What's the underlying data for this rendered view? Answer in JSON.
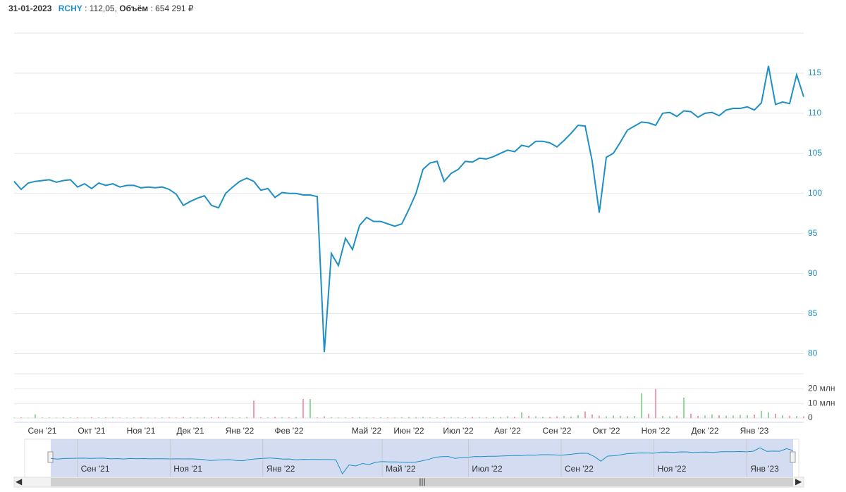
{
  "header": {
    "date": "31-01-2023",
    "ticker": "RCHY",
    "price_text": ": 112,05, ",
    "volume_label": "Объём",
    "volume_text": ": 654 291 ₽"
  },
  "chart_data": {
    "type": "line",
    "categories": [
      null,
      null,
      null,
      null,
      "Сен '21",
      null,
      null,
      null,
      null,
      null,
      null,
      "Окт '21",
      null,
      null,
      null,
      null,
      null,
      null,
      "Ноя '21",
      null,
      null,
      null,
      null,
      null,
      null,
      "Дек '21",
      null,
      null,
      null,
      null,
      null,
      null,
      "Янв '22",
      null,
      null,
      null,
      null,
      null,
      null,
      "Фев '22",
      null,
      null,
      null,
      null,
      null,
      null,
      null,
      null,
      null,
      null,
      "Май '22",
      null,
      null,
      null,
      null,
      null,
      "Июн '22",
      null,
      null,
      null,
      null,
      null,
      null,
      "Июл '22",
      null,
      null,
      null,
      null,
      null,
      null,
      "Авг '22",
      null,
      null,
      null,
      null,
      null,
      null,
      "Сен '22",
      null,
      null,
      null,
      null,
      null,
      null,
      "Окт '22",
      null,
      null,
      null,
      null,
      null,
      null,
      "Ноя '22",
      null,
      null,
      null,
      null,
      null,
      null,
      "Дек '22",
      null,
      null,
      null,
      null,
      null,
      null,
      "Янв '23",
      null,
      null,
      null,
      null,
      null,
      null,
      null
    ],
    "series": [
      {
        "name": "RCHY",
        "color": "#1f8fc4",
        "values": [
          101.5,
          100.5,
          101.3,
          101.5,
          101.6,
          101.7,
          101.4,
          101.6,
          101.7,
          100.8,
          101.2,
          100.6,
          101.3,
          101.0,
          101.2,
          100.8,
          101.0,
          101.0,
          100.7,
          100.8,
          100.7,
          100.8,
          100.5,
          99.9,
          98.5,
          99.0,
          99.4,
          99.7,
          98.5,
          98.2,
          100.0,
          100.8,
          101.5,
          101.9,
          101.5,
          100.4,
          100.6,
          99.5,
          100.1,
          100.0,
          100.0,
          99.8,
          99.8,
          99.6,
          80.2,
          92.5,
          91.0,
          94.4,
          93.0,
          96.0,
          97.0,
          96.5,
          96.5,
          96.2,
          95.9,
          96.2,
          98.0,
          100.0,
          103.0,
          103.8,
          104.0,
          101.5,
          102.5,
          103.0,
          104.0,
          103.9,
          104.4,
          104.3,
          104.6,
          105.0,
          105.4,
          105.2,
          106.0,
          105.8,
          106.5,
          106.5,
          106.3,
          105.8,
          106.6,
          107.5,
          108.5,
          108.4,
          104.0,
          97.6,
          104.5,
          105.0,
          106.4,
          107.9,
          108.4,
          108.9,
          108.8,
          108.5,
          110.0,
          110.1,
          109.6,
          110.3,
          110.2,
          109.5,
          110.0,
          110.1,
          109.7,
          110.4,
          110.6,
          110.6,
          110.8,
          110.4,
          111.3,
          115.9,
          111.1,
          111.4,
          111.2,
          114.8,
          112.05
        ]
      }
    ],
    "ylim": [
      77.5,
      120
    ],
    "yticks": [
      80,
      85,
      90,
      95,
      100,
      105,
      110,
      115
    ],
    "grid": true,
    "volume": {
      "up_color": "#8fdc9a",
      "down_color": "#f29bb0",
      "ylim": [
        0,
        26
      ],
      "yticks": [
        0,
        {
          "value": 10,
          "label": "10 млн"
        },
        {
          "value": 20,
          "label": "20 млн"
        }
      ],
      "values": [
        0.3,
        0.5,
        0.3,
        2.5,
        0.4,
        0.5,
        0.3,
        0.6,
        0.4,
        0.5,
        0.3,
        0.6,
        0.4,
        0.5,
        0.8,
        0.4,
        0.3,
        0.5,
        0.6,
        0.4,
        0.3,
        0.5,
        0.7,
        0.4,
        0.9,
        0.6,
        0.5,
        0.8,
        0.7,
        1.0,
        0.9,
        0.6,
        0.5,
        0.8,
        12,
        0.6,
        0.5,
        0.9,
        0.7,
        0.6,
        0.8,
        13,
        13,
        0.5,
        1.2,
        0.6,
        0.4,
        0.5,
        0.6,
        0.8,
        0.5,
        0.4,
        0.6,
        0.5,
        0.4,
        0.6,
        0.8,
        0.7,
        1.0,
        0.6,
        0.5,
        0.7,
        0.8,
        0.6,
        0.7,
        0.9,
        0.8,
        0.6,
        1.0,
        0.8,
        1.2,
        1.0,
        4,
        1.5,
        1.2,
        1.0,
        0.9,
        1.2,
        1.4,
        1.1,
        2,
        4.5,
        2.5,
        1.6,
        1.2,
        1.8,
        1.5,
        1.3,
        1.4,
        17,
        3,
        20,
        1.5,
        1.2,
        1.6,
        14,
        3,
        1.5,
        1.8,
        2.5,
        2.0,
        1.6,
        1.8,
        2.2,
        2.0,
        2.4,
        5,
        4,
        3,
        2.0,
        1.6,
        1.4,
        1.2
      ]
    }
  }
}
